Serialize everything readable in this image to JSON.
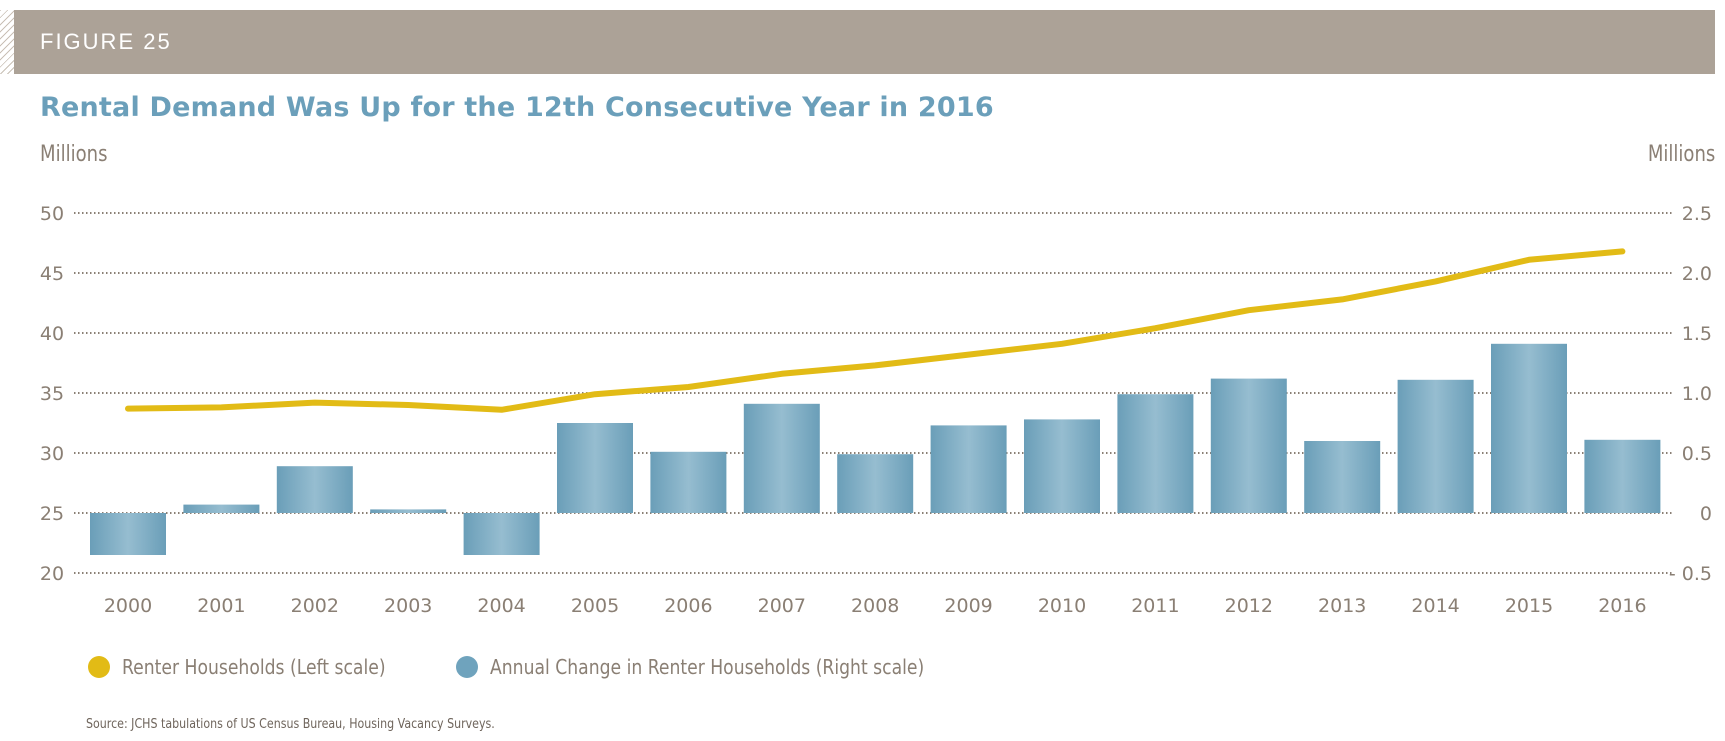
{
  "figure_label": "FIGURE 25",
  "title": "Rental Demand Was Up for the 12th Consecutive Year in 2016",
  "left_unit": "Millions",
  "right_unit": "Millions",
  "legend": [
    {
      "label": "Renter Households (Left scale)",
      "color": "#e2bb16"
    },
    {
      "label": "Annual Change in Renter Households (Right scale)",
      "color": "#6fa3bd"
    }
  ],
  "source": "Source: JCHS tabulations of US Census Bureau, Housing Vacancy Surveys.",
  "colors": {
    "line": "#e2bb16",
    "bar": "#6fa3bd",
    "grid": "#8a7f74",
    "title": "#6b9fba",
    "band": "#aca297"
  },
  "chart_data": {
    "type": "bar+line",
    "title": "Rental Demand Was Up for the 12th Consecutive Year in 2016",
    "categories": [
      "2000",
      "2001",
      "2002",
      "2003",
      "2004",
      "2005",
      "2006",
      "2007",
      "2008",
      "2009",
      "2010",
      "2011",
      "2012",
      "2013",
      "2014",
      "2015",
      "2016"
    ],
    "left_axis": {
      "label": "Millions",
      "range": [
        20,
        50
      ],
      "ticks": [
        20,
        25,
        30,
        35,
        40,
        45,
        50
      ],
      "tick_labels": [
        "20",
        "25",
        "30",
        "35",
        "40",
        "45",
        "50"
      ]
    },
    "right_axis": {
      "label": "Millions",
      "range": [
        -0.5,
        2.5
      ],
      "ticks": [
        -0.5,
        0,
        0.5,
        1.0,
        1.5,
        2.0,
        2.5
      ],
      "tick_labels": [
        "- 0.5",
        "0",
        "0.5",
        "1.0",
        "1.5",
        "2.0",
        "2.5"
      ]
    },
    "grid": true,
    "legend_position": "bottom-left",
    "series": [
      {
        "name": "Renter Households (Left scale)",
        "type": "line",
        "axis": "left",
        "values": [
          33.7,
          33.8,
          34.2,
          34.0,
          33.6,
          34.9,
          35.5,
          36.6,
          37.3,
          38.2,
          39.1,
          40.4,
          41.9,
          42.8,
          44.3,
          46.1,
          46.8
        ]
      },
      {
        "name": "Annual Change in Renter Households (Right scale)",
        "type": "bar",
        "axis": "right",
        "values": [
          -0.35,
          0.07,
          0.39,
          0.03,
          -0.35,
          0.75,
          0.51,
          0.91,
          0.49,
          0.73,
          0.78,
          0.99,
          1.12,
          0.6,
          1.11,
          1.41,
          0.61
        ]
      }
    ]
  }
}
